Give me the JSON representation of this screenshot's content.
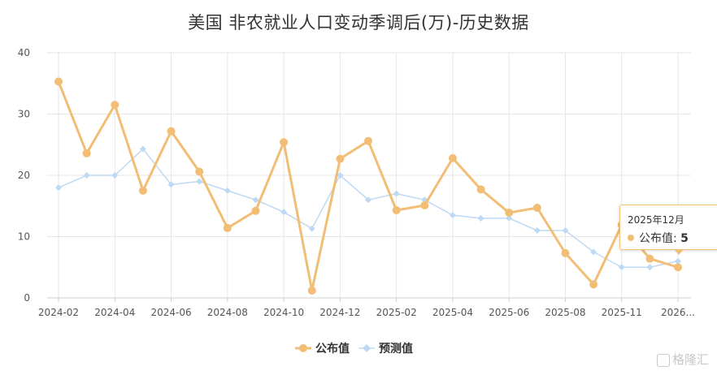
{
  "chart_data": {
    "type": "line",
    "title": "美国 非农就业人口变动季调后(万)-历史数据",
    "ylim": [
      0,
      40
    ],
    "yticks": [
      0,
      10,
      20,
      30,
      40
    ],
    "x": [
      "2024-02",
      "2024-03",
      "2024-04",
      "2024-05",
      "2024-06",
      "2024-07",
      "2024-08",
      "2024-09",
      "2024-10",
      "2024-11",
      "2024-12",
      "2025-01",
      "2025-02",
      "2025-03",
      "2025-04",
      "2025-05",
      "2025-06",
      "2025-07",
      "2025-08",
      "2025-09",
      "2025-10",
      "2025-11",
      "2025-12"
    ],
    "xtick_labels": [
      "2024-02",
      "2024-04",
      "2024-06",
      "2024-08",
      "2024-10",
      "2024-12",
      "2025-02",
      "2025-04",
      "2025-06",
      "2025-08",
      "2025-11",
      "2026..."
    ],
    "series": [
      {
        "name": "公布值",
        "color": "#f2bd74",
        "marker": "circle",
        "values": [
          35.3,
          23.6,
          31.5,
          17.5,
          27.2,
          20.6,
          11.4,
          14.2,
          25.4,
          1.2,
          22.7,
          25.6,
          14.3,
          15.1,
          22.8,
          17.7,
          13.9,
          14.7,
          7.3,
          2.2,
          11.9,
          6.4,
          5
        ]
      },
      {
        "name": "预测值",
        "color": "#bed9f3",
        "marker": "diamond",
        "values": [
          18,
          20,
          20,
          24.3,
          18.5,
          19,
          17.5,
          16,
          14,
          11.3,
          20,
          16,
          17,
          16,
          13.5,
          13,
          13,
          11,
          11,
          7.5,
          5,
          5,
          6
        ]
      }
    ],
    "grid": true,
    "legend_position": "bottom"
  },
  "tooltip": {
    "date": "2025年12月",
    "series_label": "公布值:",
    "value": "5"
  },
  "watermark": "格隆汇"
}
